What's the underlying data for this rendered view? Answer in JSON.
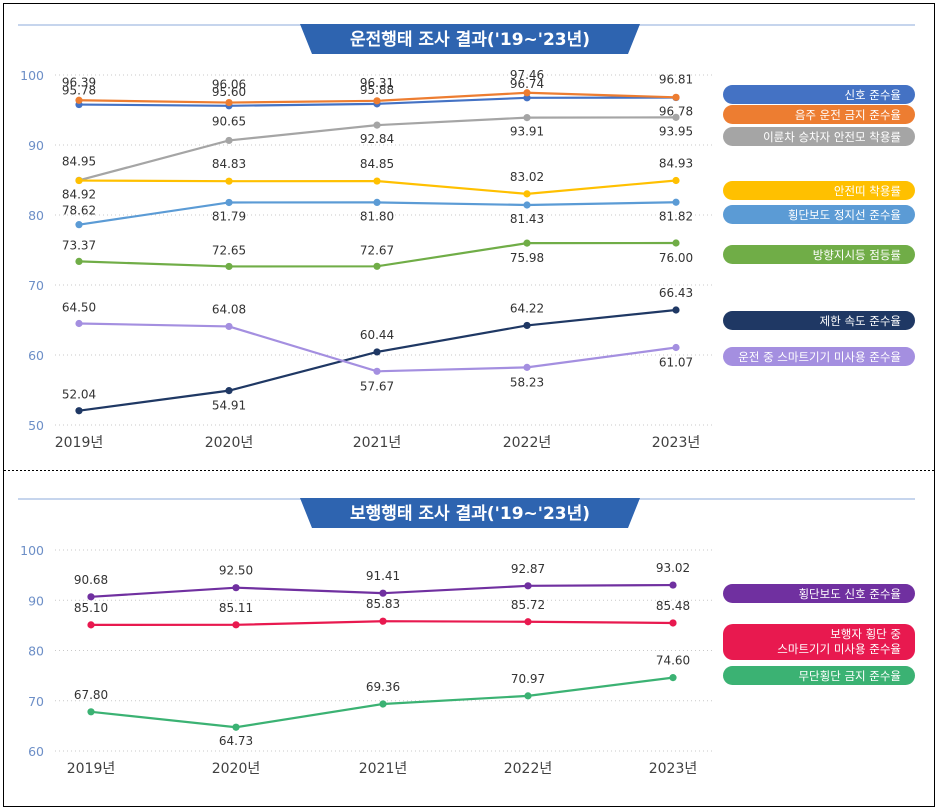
{
  "chart_data": [
    {
      "type": "line",
      "title": "운전행태 조사 결과('19~'23년)",
      "categories": [
        "2019년",
        "2020년",
        "2021년",
        "2022년",
        "2023년"
      ],
      "ylim": [
        50,
        100
      ],
      "yticks": [
        "100",
        "90",
        "80",
        "70",
        "60",
        "50"
      ],
      "grid": true,
      "legend_position": "right",
      "series": [
        {
          "name": "신호 준수율",
          "color": "#4472c4",
          "values": [
            95.78,
            95.6,
            95.88,
            96.74,
            96.78
          ],
          "labels": [
            "95.78",
            "95.60",
            "95.88",
            "96.74",
            "96.78"
          ]
        },
        {
          "name": "음주 운전 금지 준수율",
          "color": "#ed7d31",
          "values": [
            96.39,
            96.06,
            96.31,
            97.46,
            96.81
          ],
          "labels": [
            "96.39",
            "96.06",
            "96.31",
            "97.46",
            "96.81"
          ]
        },
        {
          "name": "이륜차 승차자 안전모 착용률",
          "color": "#a5a5a5",
          "values": [
            84.95,
            90.65,
            92.84,
            93.91,
            93.95
          ],
          "labels": [
            "84.95",
            "90.65",
            "92.84",
            "93.91",
            "93.95"
          ]
        },
        {
          "name": "안전띠 착용률",
          "color": "#ffc000",
          "values": [
            84.92,
            84.83,
            84.85,
            83.02,
            84.93
          ],
          "labels": [
            "84.92",
            "84.83",
            "84.85",
            "83.02",
            "84.93"
          ]
        },
        {
          "name": "횡단보도 정지선 준수율",
          "color": "#5b9bd5",
          "values": [
            78.62,
            81.79,
            81.8,
            81.43,
            81.82
          ],
          "labels": [
            "78.62",
            "81.79",
            "81.80",
            "81.43",
            "81.82"
          ]
        },
        {
          "name": "방향지시등 점등률",
          "color": "#70ad47",
          "values": [
            73.37,
            72.65,
            72.67,
            75.98,
            76.0
          ],
          "labels": [
            "73.37",
            "72.65",
            "72.67",
            "75.98",
            "76.00"
          ]
        },
        {
          "name": "제한 속도 준수율",
          "color": "#1f3864",
          "values": [
            52.04,
            54.91,
            60.44,
            64.22,
            66.43
          ],
          "labels": [
            "52.04",
            "54.91",
            "60.44",
            "64.22",
            "66.43"
          ]
        },
        {
          "name": "운전 중 스마트기기 미사용 준수율",
          "color": "#a48fe0",
          "values": [
            64.5,
            64.08,
            57.67,
            58.23,
            61.07
          ],
          "labels": [
            "64.50",
            "64.08",
            "57.67",
            "58.23",
            "61.07"
          ]
        }
      ]
    },
    {
      "type": "line",
      "title": "보행행태 조사 결과('19~'23년)",
      "categories": [
        "2019년",
        "2020년",
        "2021년",
        "2022년",
        "2023년"
      ],
      "ylim": [
        60,
        100
      ],
      "yticks": [
        "100",
        "90",
        "80",
        "70",
        "60"
      ],
      "grid": true,
      "legend_position": "right",
      "series": [
        {
          "name": "횡단보도 신호 준수율",
          "color": "#7030a0",
          "values": [
            90.68,
            92.5,
            91.41,
            92.87,
            93.02
          ],
          "labels": [
            "90.68",
            "92.50",
            "91.41",
            "92.87",
            "93.02"
          ]
        },
        {
          "name": "보행자 횡단 중 스마트기기 미사용 준수율",
          "name_lines": [
            "보행자 횡단 중",
            "스마트기기 미사용 준수율"
          ],
          "color": "#e8194f",
          "values": [
            85.1,
            85.11,
            85.83,
            85.72,
            85.48
          ],
          "labels": [
            "85.10",
            "85.11",
            "85.83",
            "85.72",
            "85.48"
          ]
        },
        {
          "name": "무단횡단 금지 준수율",
          "color": "#3bb273",
          "values": [
            67.8,
            64.73,
            69.36,
            70.97,
            74.6
          ],
          "labels": [
            "67.80",
            "64.73",
            "69.36",
            "70.97",
            "74.60"
          ]
        }
      ]
    }
  ]
}
